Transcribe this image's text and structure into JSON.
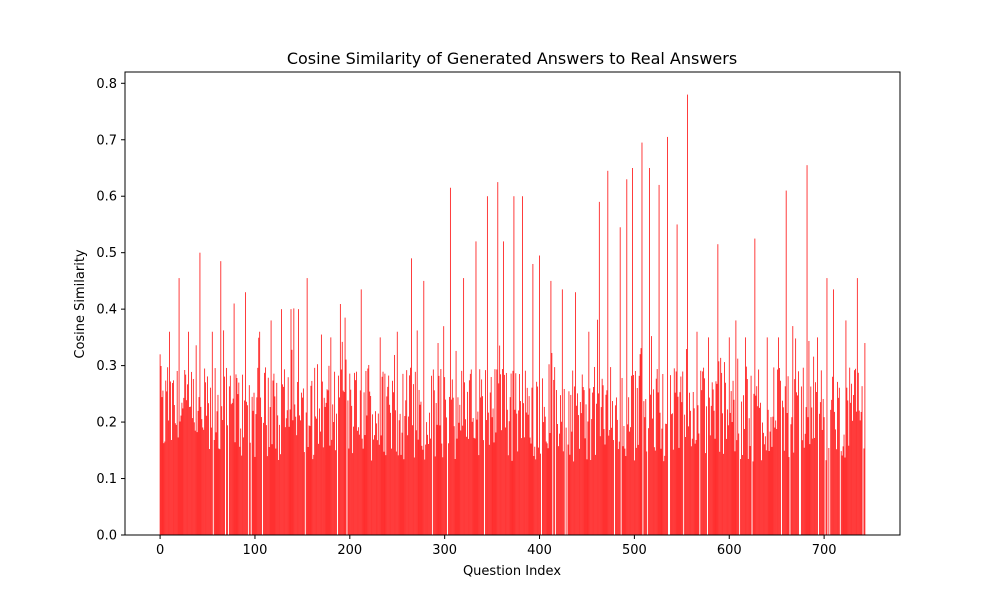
{
  "chart_data": {
    "type": "bar",
    "title": "Cosine Similarity of Generated Answers to Real Answers",
    "xlabel": "Question Index",
    "ylabel": "Cosine Similarity",
    "bar_color": "#ff0000",
    "xlim": [
      -37,
      780
    ],
    "ylim": [
      0,
      0.82
    ],
    "xticks": [
      0,
      100,
      200,
      300,
      400,
      500,
      600,
      700
    ],
    "yticks": [
      0.0,
      0.1,
      0.2,
      0.3,
      0.4,
      0.5,
      0.6,
      0.7,
      0.8
    ],
    "ytick_labels": [
      "0.0",
      "0.1",
      "0.2",
      "0.3",
      "0.4",
      "0.5",
      "0.6",
      "0.7",
      "0.8"
    ],
    "grid": false,
    "legend": false,
    "n_points": 744,
    "x_start": 0,
    "values_note_base": 0.22,
    "peaks": [
      [
        0,
        0.32
      ],
      [
        10,
        0.36
      ],
      [
        20,
        0.455
      ],
      [
        30,
        0.36
      ],
      [
        42,
        0.5
      ],
      [
        55,
        0.36
      ],
      [
        64,
        0.485
      ],
      [
        78,
        0.41
      ],
      [
        90,
        0.43
      ],
      [
        105,
        0.36
      ],
      [
        117,
        0.38
      ],
      [
        128,
        0.4
      ],
      [
        138,
        0.4
      ],
      [
        146,
        0.4
      ],
      [
        155,
        0.455
      ],
      [
        170,
        0.355
      ],
      [
        180,
        0.35
      ],
      [
        195,
        0.385
      ],
      [
        212,
        0.435
      ],
      [
        232,
        0.35
      ],
      [
        250,
        0.36
      ],
      [
        265,
        0.49
      ],
      [
        278,
        0.45
      ],
      [
        293,
        0.34
      ],
      [
        306,
        0.615
      ],
      [
        320,
        0.455
      ],
      [
        333,
        0.52
      ],
      [
        345,
        0.6
      ],
      [
        356,
        0.625
      ],
      [
        362,
        0.52
      ],
      [
        373,
        0.6
      ],
      [
        382,
        0.6
      ],
      [
        393,
        0.48
      ],
      [
        400,
        0.495
      ],
      [
        412,
        0.45
      ],
      [
        424,
        0.435
      ],
      [
        438,
        0.43
      ],
      [
        452,
        0.36
      ],
      [
        463,
        0.59
      ],
      [
        472,
        0.645
      ],
      [
        485,
        0.545
      ],
      [
        492,
        0.63
      ],
      [
        498,
        0.65
      ],
      [
        508,
        0.695
      ],
      [
        516,
        0.65
      ],
      [
        526,
        0.62
      ],
      [
        535,
        0.705
      ],
      [
        545,
        0.55
      ],
      [
        556,
        0.78
      ],
      [
        566,
        0.36
      ],
      [
        578,
        0.35
      ],
      [
        588,
        0.515
      ],
      [
        600,
        0.35
      ],
      [
        607,
        0.38
      ],
      [
        617,
        0.35
      ],
      [
        627,
        0.525
      ],
      [
        640,
        0.35
      ],
      [
        652,
        0.35
      ],
      [
        660,
        0.61
      ],
      [
        667,
        0.37
      ],
      [
        682,
        0.655
      ],
      [
        693,
        0.35
      ],
      [
        703,
        0.455
      ],
      [
        710,
        0.435
      ],
      [
        723,
        0.38
      ],
      [
        735,
        0.455
      ],
      [
        743,
        0.34
      ]
    ]
  }
}
